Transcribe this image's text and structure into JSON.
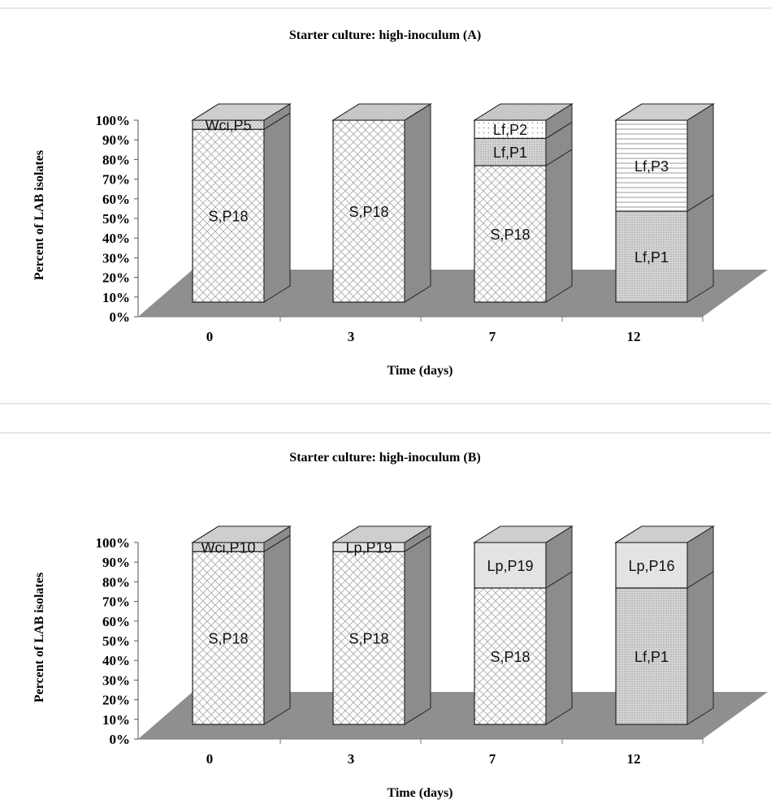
{
  "chart_data": [
    {
      "type": "bar",
      "stacked": true,
      "three_d": true,
      "title": "Starter culture: high-inoculum (A)",
      "xlabel": "Time (days)",
      "ylabel": "Percent of LAB isolates",
      "ylim": [
        0,
        100
      ],
      "y_ticks": [
        "0%",
        "10%",
        "20%",
        "30%",
        "40%",
        "50%",
        "60%",
        "70%",
        "80%",
        "90%",
        "100%"
      ],
      "categories": [
        "0",
        "3",
        "7",
        "12"
      ],
      "bars": [
        {
          "category": "0",
          "segments": [
            {
              "label": "S,P18",
              "value": 95,
              "pattern": "crosshatch"
            },
            {
              "label": "Wci,P5",
              "value": 5,
              "pattern": "dots"
            }
          ]
        },
        {
          "category": "3",
          "segments": [
            {
              "label": "S,P18",
              "value": 100,
              "pattern": "crosshatch"
            }
          ]
        },
        {
          "category": "7",
          "segments": [
            {
              "label": "S,P18",
              "value": 75,
              "pattern": "crosshatch"
            },
            {
              "label": "Lf,P1",
              "value": 15,
              "pattern": "fine-dots"
            },
            {
              "label": "Lf,P2",
              "value": 10,
              "pattern": "sparse-dots"
            }
          ]
        },
        {
          "category": "12",
          "segments": [
            {
              "label": "Lf,P1",
              "value": 50,
              "pattern": "fine-dots"
            },
            {
              "label": "Lf,P3",
              "value": 50,
              "pattern": "horizontal-lines"
            }
          ]
        }
      ],
      "grid": false,
      "floor_color": "#8f8f8f"
    },
    {
      "type": "bar",
      "stacked": true,
      "three_d": true,
      "title": "Starter culture: high-inoculum (B)",
      "xlabel": "Time (days)",
      "ylabel": "Percent of LAB isolates",
      "ylim": [
        0,
        100
      ],
      "y_ticks": [
        "0%",
        "10%",
        "20%",
        "30%",
        "40%",
        "50%",
        "60%",
        "70%",
        "80%",
        "90%",
        "100%"
      ],
      "categories": [
        "0",
        "3",
        "7",
        "12"
      ],
      "bars": [
        {
          "category": "0",
          "segments": [
            {
              "label": "S,P18",
              "value": 95,
              "pattern": "crosshatch"
            },
            {
              "label": "Wci,P10",
              "value": 5,
              "pattern": "dots"
            }
          ]
        },
        {
          "category": "3",
          "segments": [
            {
              "label": "S,P18",
              "value": 95,
              "pattern": "crosshatch"
            },
            {
              "label": "Lp,P19",
              "value": 5,
              "pattern": "light-gray"
            }
          ]
        },
        {
          "category": "7",
          "segments": [
            {
              "label": "S,P18",
              "value": 75,
              "pattern": "crosshatch"
            },
            {
              "label": "Lp,P19",
              "value": 25,
              "pattern": "light-gray"
            }
          ]
        },
        {
          "category": "12",
          "segments": [
            {
              "label": "Lf,P1",
              "value": 75,
              "pattern": "fine-dots"
            },
            {
              "label": "Lp,P16",
              "value": 25,
              "pattern": "light-gray"
            }
          ]
        }
      ],
      "grid": false,
      "floor_color": "#8f8f8f"
    }
  ]
}
